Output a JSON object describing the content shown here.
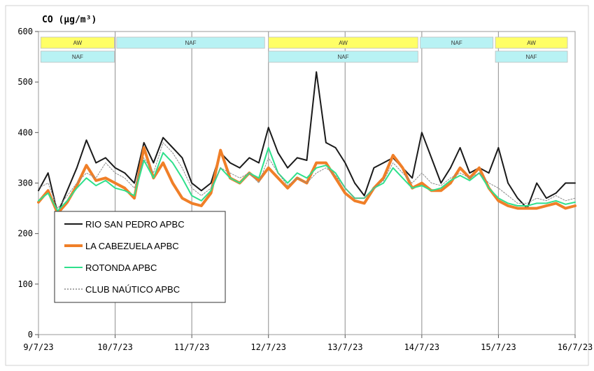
{
  "chart_data": {
    "type": "line",
    "title": "CO (µg/m³)",
    "xlabel": "",
    "ylabel": "",
    "ylim": [
      0,
      600
    ],
    "yticks": [
      0,
      100,
      200,
      300,
      400,
      500,
      600
    ],
    "xlim": [
      0,
      7
    ],
    "xticks": [
      {
        "x": 0,
        "label": "9/7/23"
      },
      {
        "x": 1,
        "label": "10/7/23"
      },
      {
        "x": 2,
        "label": "11/7/23"
      },
      {
        "x": 3,
        "label": "12/7/23"
      },
      {
        "x": 4,
        "label": "13/7/23"
      },
      {
        "x": 5,
        "label": "14/7/23"
      },
      {
        "x": 6,
        "label": "15/7/23"
      },
      {
        "x": 7,
        "label": "16/7/23"
      }
    ],
    "grid": "vertical day lines",
    "legend_position": "lower-left",
    "event_bands": [
      {
        "label": "AW",
        "x0": 0.03,
        "x1": 0.99,
        "row": 0,
        "color": "#ffff66"
      },
      {
        "label": "NAF",
        "x0": 0.03,
        "x1": 0.99,
        "row": 1,
        "color": "#b8f2f4"
      },
      {
        "label": "NAF",
        "x0": 1.02,
        "x1": 2.95,
        "row": 0,
        "color": "#b8f2f4"
      },
      {
        "label": "AW",
        "x0": 3.0,
        "x1": 4.95,
        "row": 0,
        "color": "#ffff66"
      },
      {
        "label": "NAF",
        "x0": 3.0,
        "x1": 4.95,
        "row": 1,
        "color": "#b8f2f4"
      },
      {
        "label": "NAF",
        "x0": 4.98,
        "x1": 5.93,
        "row": 0,
        "color": "#b8f2f4"
      },
      {
        "label": "AW",
        "x0": 5.96,
        "x1": 6.9,
        "row": 0,
        "color": "#ffff66"
      },
      {
        "label": "NAF",
        "x0": 5.96,
        "x1": 6.9,
        "row": 1,
        "color": "#b8f2f4"
      }
    ],
    "x": [
      0,
      0.125,
      0.25,
      0.375,
      0.5,
      0.625,
      0.75,
      0.875,
      1,
      1.125,
      1.25,
      1.375,
      1.5,
      1.625,
      1.75,
      1.875,
      2,
      2.125,
      2.25,
      2.375,
      2.5,
      2.625,
      2.75,
      2.875,
      3,
      3.125,
      3.25,
      3.375,
      3.5,
      3.625,
      3.75,
      3.875,
      4,
      4.125,
      4.25,
      4.375,
      4.5,
      4.625,
      4.75,
      4.875,
      5,
      5.125,
      5.25,
      5.375,
      5.5,
      5.625,
      5.75,
      5.875,
      6,
      6.125,
      6.25,
      6.375,
      6.5,
      6.625,
      6.75,
      6.875,
      7
    ],
    "series": [
      {
        "name": "RIO SAN PEDRO APBC",
        "color": "#1a1a1a",
        "width": 2,
        "values": [
          285,
          320,
          240,
          285,
          330,
          385,
          340,
          350,
          330,
          320,
          300,
          380,
          340,
          390,
          370,
          350,
          300,
          285,
          300,
          360,
          340,
          330,
          350,
          340,
          410,
          360,
          330,
          350,
          345,
          520,
          380,
          370,
          340,
          300,
          275,
          330,
          340,
          350,
          330,
          310,
          400,
          350,
          300,
          330,
          370,
          320,
          330,
          320,
          370,
          300,
          270,
          250,
          300,
          270,
          280,
          300,
          300
        ]
      },
      {
        "name": "LA CABEZUELA  APBC",
        "color": "#f07f28",
        "width": 4,
        "values": [
          262,
          285,
          240,
          262,
          295,
          335,
          305,
          310,
          300,
          290,
          270,
          370,
          310,
          340,
          300,
          270,
          260,
          255,
          280,
          365,
          310,
          300,
          320,
          305,
          330,
          310,
          290,
          310,
          300,
          340,
          340,
          310,
          280,
          265,
          260,
          290,
          310,
          355,
          330,
          290,
          300,
          285,
          285,
          300,
          330,
          310,
          330,
          290,
          265,
          255,
          250,
          250,
          250,
          255,
          260,
          250,
          255
        ]
      },
      {
        "name": "ROTONDA  APBC",
        "color": "#2fe08c",
        "width": 2,
        "values": [
          265,
          280,
          245,
          265,
          290,
          310,
          295,
          305,
          290,
          285,
          275,
          345,
          310,
          360,
          340,
          310,
          275,
          265,
          285,
          330,
          310,
          300,
          320,
          310,
          370,
          320,
          300,
          320,
          310,
          330,
          335,
          320,
          290,
          270,
          270,
          290,
          300,
          330,
          310,
          290,
          295,
          285,
          290,
          305,
          315,
          305,
          320,
          290,
          270,
          260,
          255,
          255,
          260,
          260,
          265,
          258,
          262
        ]
      },
      {
        "name": "CLUB NAÚTICO  APBC",
        "color": "#8a8a8a",
        "width": 1,
        "dash": "2,2",
        "values": [
          290,
          300,
          250,
          275,
          300,
          320,
          310,
          340,
          320,
          310,
          290,
          350,
          320,
          380,
          360,
          330,
          290,
          275,
          290,
          330,
          320,
          310,
          320,
          300,
          350,
          320,
          295,
          310,
          300,
          320,
          330,
          315,
          290,
          270,
          270,
          290,
          305,
          340,
          320,
          300,
          320,
          300,
          295,
          310,
          320,
          310,
          320,
          300,
          290,
          275,
          260,
          260,
          270,
          265,
          275,
          265,
          270
        ]
      }
    ]
  }
}
